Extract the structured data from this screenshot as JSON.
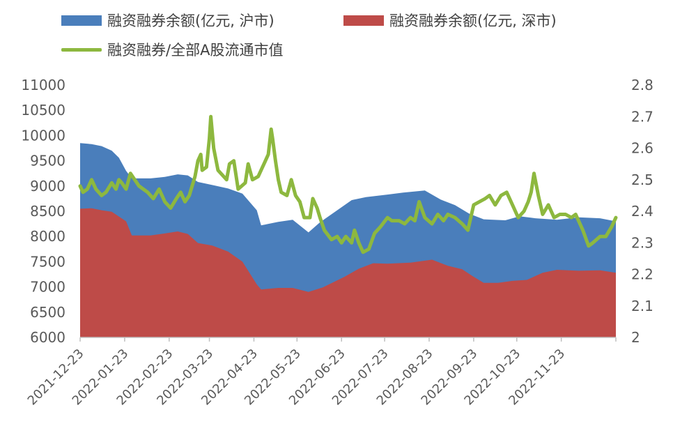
{
  "chart_data": {
    "type": "area",
    "legend": [
      {
        "name": "融资融券余额(亿元, 沪市)",
        "color": "#4A7EBB",
        "kind": "area"
      },
      {
        "name": "融资融券余额(亿元, 深市)",
        "color": "#BE4B48",
        "kind": "area"
      },
      {
        "name": "融资融券/全部A股流通市值",
        "color": "#8DB83F",
        "kind": "line"
      }
    ],
    "x_tick_labels": [
      "2021-12-23",
      "2022-01-23",
      "2022-02-23",
      "2022-03-23",
      "2022-04-23",
      "2022-05-23",
      "2022-06-23",
      "2022-07-23",
      "2022-08-23",
      "2022-09-23",
      "2022-10-23",
      "2022-11-23"
    ],
    "x_range": [
      "2021-12-23",
      "2022-12-31"
    ],
    "y_left": {
      "min": 6000,
      "max": 11000,
      "ticks": [
        "6000",
        "6500",
        "7000",
        "7500",
        "8000",
        "8500",
        "9000",
        "9500",
        "10000",
        "10500",
        "11000"
      ]
    },
    "y_right": {
      "min": 2.0,
      "max": 2.8,
      "ticks": [
        "2",
        "2.1",
        "2.2",
        "2.3",
        "2.4",
        "2.5",
        "2.6",
        "2.7",
        "2.8"
      ]
    },
    "series": [
      {
        "name": "融资融券余额(亿元, 沪市)",
        "axis": "left",
        "stacked_total": true,
        "points": [
          [
            "2021-12-23",
            9850
          ],
          [
            "2021-12-31",
            9830
          ],
          [
            "2022-01-07",
            9790
          ],
          [
            "2022-01-14",
            9700
          ],
          [
            "2022-01-19",
            9560
          ],
          [
            "2022-01-24",
            9300
          ],
          [
            "2022-01-28",
            9150
          ],
          [
            "2022-02-10",
            9150
          ],
          [
            "2022-02-20",
            9180
          ],
          [
            "2022-03-01",
            9230
          ],
          [
            "2022-03-08",
            9210
          ],
          [
            "2022-03-15",
            9080
          ],
          [
            "2022-03-25",
            9020
          ],
          [
            "2022-04-05",
            8950
          ],
          [
            "2022-04-15",
            8850
          ],
          [
            "2022-04-25",
            8520
          ],
          [
            "2022-04-28",
            8220
          ],
          [
            "2022-05-10",
            8290
          ],
          [
            "2022-05-20",
            8330
          ],
          [
            "2022-05-31",
            8080
          ],
          [
            "2022-06-08",
            8280
          ],
          [
            "2022-06-20",
            8520
          ],
          [
            "2022-06-30",
            8720
          ],
          [
            "2022-07-10",
            8780
          ],
          [
            "2022-07-25",
            8830
          ],
          [
            "2022-08-05",
            8870
          ],
          [
            "2022-08-20",
            8910
          ],
          [
            "2022-08-31",
            8730
          ],
          [
            "2022-09-10",
            8620
          ],
          [
            "2022-09-20",
            8450
          ],
          [
            "2022-09-30",
            8340
          ],
          [
            "2022-10-15",
            8320
          ],
          [
            "2022-10-25",
            8400
          ],
          [
            "2022-11-05",
            8360
          ],
          [
            "2022-11-20",
            8330
          ],
          [
            "2022-12-05",
            8380
          ],
          [
            "2022-12-20",
            8360
          ],
          [
            "2022-12-31",
            8300
          ]
        ]
      },
      {
        "name": "融资融券余额(亿元, 深市)",
        "axis": "left",
        "points": [
          [
            "2021-12-23",
            8550
          ],
          [
            "2021-12-31",
            8560
          ],
          [
            "2022-01-07",
            8520
          ],
          [
            "2022-01-14",
            8490
          ],
          [
            "2022-01-24",
            8300
          ],
          [
            "2022-01-28",
            8020
          ],
          [
            "2022-02-10",
            8020
          ],
          [
            "2022-02-20",
            8060
          ],
          [
            "2022-03-01",
            8100
          ],
          [
            "2022-03-08",
            8050
          ],
          [
            "2022-03-15",
            7870
          ],
          [
            "2022-03-25",
            7820
          ],
          [
            "2022-04-05",
            7700
          ],
          [
            "2022-04-15",
            7500
          ],
          [
            "2022-04-25",
            7050
          ],
          [
            "2022-04-28",
            6950
          ],
          [
            "2022-05-10",
            6980
          ],
          [
            "2022-05-20",
            6980
          ],
          [
            "2022-05-31",
            6900
          ],
          [
            "2022-06-10",
            6990
          ],
          [
            "2022-06-25",
            7200
          ],
          [
            "2022-07-05",
            7360
          ],
          [
            "2022-07-15",
            7470
          ],
          [
            "2022-07-25",
            7460
          ],
          [
            "2022-08-10",
            7480
          ],
          [
            "2022-08-25",
            7540
          ],
          [
            "2022-09-05",
            7420
          ],
          [
            "2022-09-15",
            7350
          ],
          [
            "2022-09-22",
            7220
          ],
          [
            "2022-09-30",
            7080
          ],
          [
            "2022-10-10",
            7080
          ],
          [
            "2022-10-20",
            7120
          ],
          [
            "2022-10-30",
            7140
          ],
          [
            "2022-11-10",
            7280
          ],
          [
            "2022-11-20",
            7340
          ],
          [
            "2022-12-05",
            7320
          ],
          [
            "2022-12-20",
            7330
          ],
          [
            "2022-12-31",
            7280
          ]
        ]
      },
      {
        "name": "融资融券/全部A股流通市值",
        "axis": "right",
        "points": [
          [
            "2021-12-23",
            2.48
          ],
          [
            "2021-12-25",
            2.46
          ],
          [
            "2021-12-28",
            2.47
          ],
          [
            "2021-12-31",
            2.5
          ],
          [
            "2022-01-03",
            2.47
          ],
          [
            "2022-01-07",
            2.45
          ],
          [
            "2022-01-10",
            2.46
          ],
          [
            "2022-01-14",
            2.49
          ],
          [
            "2022-01-17",
            2.47
          ],
          [
            "2022-01-19",
            2.5
          ],
          [
            "2022-01-21",
            2.49
          ],
          [
            "2022-01-24",
            2.47
          ],
          [
            "2022-01-27",
            2.52
          ],
          [
            "2022-02-02",
            2.48
          ],
          [
            "2022-02-08",
            2.46
          ],
          [
            "2022-02-12",
            2.44
          ],
          [
            "2022-02-16",
            2.47
          ],
          [
            "2022-02-20",
            2.43
          ],
          [
            "2022-02-24",
            2.41
          ],
          [
            "2022-02-28",
            2.44
          ],
          [
            "2022-03-03",
            2.46
          ],
          [
            "2022-03-06",
            2.43
          ],
          [
            "2022-03-09",
            2.45
          ],
          [
            "2022-03-13",
            2.51
          ],
          [
            "2022-03-15",
            2.56
          ],
          [
            "2022-03-17",
            2.58
          ],
          [
            "2022-03-18",
            2.53
          ],
          [
            "2022-03-21",
            2.54
          ],
          [
            "2022-03-23",
            2.63
          ],
          [
            "2022-03-24",
            2.7
          ],
          [
            "2022-03-26",
            2.6
          ],
          [
            "2022-03-29",
            2.53
          ],
          [
            "2022-04-04",
            2.5
          ],
          [
            "2022-04-06",
            2.55
          ],
          [
            "2022-04-09",
            2.56
          ],
          [
            "2022-04-12",
            2.47
          ],
          [
            "2022-04-17",
            2.49
          ],
          [
            "2022-04-19",
            2.55
          ],
          [
            "2022-04-22",
            2.5
          ],
          [
            "2022-04-26",
            2.51
          ],
          [
            "2022-05-01",
            2.56
          ],
          [
            "2022-05-03",
            2.58
          ],
          [
            "2022-05-05",
            2.66
          ],
          [
            "2022-05-06",
            2.63
          ],
          [
            "2022-05-08",
            2.56
          ],
          [
            "2022-05-10",
            2.5
          ],
          [
            "2022-05-12",
            2.46
          ],
          [
            "2022-05-16",
            2.45
          ],
          [
            "2022-05-19",
            2.5
          ],
          [
            "2022-05-22",
            2.45
          ],
          [
            "2022-05-25",
            2.43
          ],
          [
            "2022-05-28",
            2.38
          ],
          [
            "2022-06-01",
            2.38
          ],
          [
            "2022-06-03",
            2.44
          ],
          [
            "2022-06-06",
            2.41
          ],
          [
            "2022-06-08",
            2.38
          ],
          [
            "2022-06-11",
            2.34
          ],
          [
            "2022-06-16",
            2.31
          ],
          [
            "2022-06-20",
            2.32
          ],
          [
            "2022-06-23",
            2.3
          ],
          [
            "2022-06-26",
            2.32
          ],
          [
            "2022-06-30",
            2.3
          ],
          [
            "2022-07-02",
            2.34
          ],
          [
            "2022-07-05",
            2.3
          ],
          [
            "2022-07-08",
            2.27
          ],
          [
            "2022-07-12",
            2.28
          ],
          [
            "2022-07-16",
            2.33
          ],
          [
            "2022-07-20",
            2.35
          ],
          [
            "2022-07-25",
            2.38
          ],
          [
            "2022-07-28",
            2.37
          ],
          [
            "2022-08-02",
            2.37
          ],
          [
            "2022-08-06",
            2.36
          ],
          [
            "2022-08-10",
            2.38
          ],
          [
            "2022-08-13",
            2.37
          ],
          [
            "2022-08-16",
            2.43
          ],
          [
            "2022-08-20",
            2.38
          ],
          [
            "2022-08-25",
            2.36
          ],
          [
            "2022-08-29",
            2.39
          ],
          [
            "2022-09-02",
            2.37
          ],
          [
            "2022-09-05",
            2.39
          ],
          [
            "2022-09-10",
            2.38
          ],
          [
            "2022-09-15",
            2.36
          ],
          [
            "2022-09-19",
            2.34
          ],
          [
            "2022-09-23",
            2.42
          ],
          [
            "2022-09-27",
            2.43
          ],
          [
            "2022-10-01",
            2.44
          ],
          [
            "2022-10-04",
            2.45
          ],
          [
            "2022-10-08",
            2.42
          ],
          [
            "2022-10-12",
            2.45
          ],
          [
            "2022-10-16",
            2.46
          ],
          [
            "2022-10-20",
            2.42
          ],
          [
            "2022-10-24",
            2.38
          ],
          [
            "2022-10-28",
            2.4
          ],
          [
            "2022-10-31",
            2.43
          ],
          [
            "2022-11-02",
            2.46
          ],
          [
            "2022-11-04",
            2.52
          ],
          [
            "2022-11-07",
            2.45
          ],
          [
            "2022-11-10",
            2.39
          ],
          [
            "2022-11-14",
            2.42
          ],
          [
            "2022-11-18",
            2.38
          ],
          [
            "2022-11-22",
            2.39
          ],
          [
            "2022-11-26",
            2.39
          ],
          [
            "2022-11-30",
            2.38
          ],
          [
            "2022-12-03",
            2.39
          ],
          [
            "2022-12-08",
            2.34
          ],
          [
            "2022-12-12",
            2.29
          ],
          [
            "2022-12-15",
            2.3
          ],
          [
            "2022-12-20",
            2.32
          ],
          [
            "2022-12-24",
            2.32
          ],
          [
            "2022-12-28",
            2.35
          ],
          [
            "2022-12-31",
            2.38
          ]
        ]
      }
    ],
    "grid": false,
    "legend_position": "top"
  }
}
